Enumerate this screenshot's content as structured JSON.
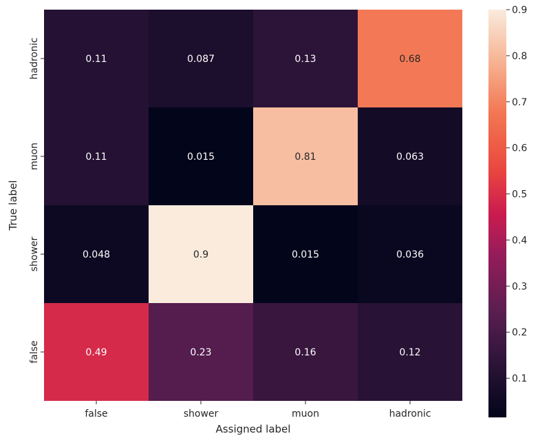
{
  "chart_data": {
    "type": "heatmap",
    "xlabel": "Assigned label",
    "ylabel": "True label",
    "x_categories": [
      "false",
      "shower",
      "muon",
      "hadronic"
    ],
    "y_categories": [
      "hadronic",
      "muon",
      "shower",
      "false"
    ],
    "values": [
      [
        0.11,
        0.087,
        0.13,
        0.68
      ],
      [
        0.11,
        0.015,
        0.81,
        0.063
      ],
      [
        0.048,
        0.9,
        0.015,
        0.036
      ],
      [
        0.49,
        0.23,
        0.16,
        0.12
      ]
    ],
    "cell_labels": [
      [
        "0.11",
        "0.087",
        "0.13",
        "0.68"
      ],
      [
        "0.11",
        "0.015",
        "0.81",
        "0.063"
      ],
      [
        "0.048",
        "0.9",
        "0.015",
        "0.036"
      ],
      [
        "0.49",
        "0.23",
        "0.16",
        "0.12"
      ]
    ],
    "colorbar": {
      "vmin": 0.015,
      "vmax": 0.9,
      "ticks": [
        0.1,
        0.2,
        0.3,
        0.4,
        0.5,
        0.6,
        0.7,
        0.8,
        0.9
      ],
      "tick_labels": [
        "0.1",
        "0.2",
        "0.3",
        "0.4",
        "0.5",
        "0.6",
        "0.7",
        "0.8",
        "0.9"
      ],
      "colormap": "rocket"
    }
  }
}
